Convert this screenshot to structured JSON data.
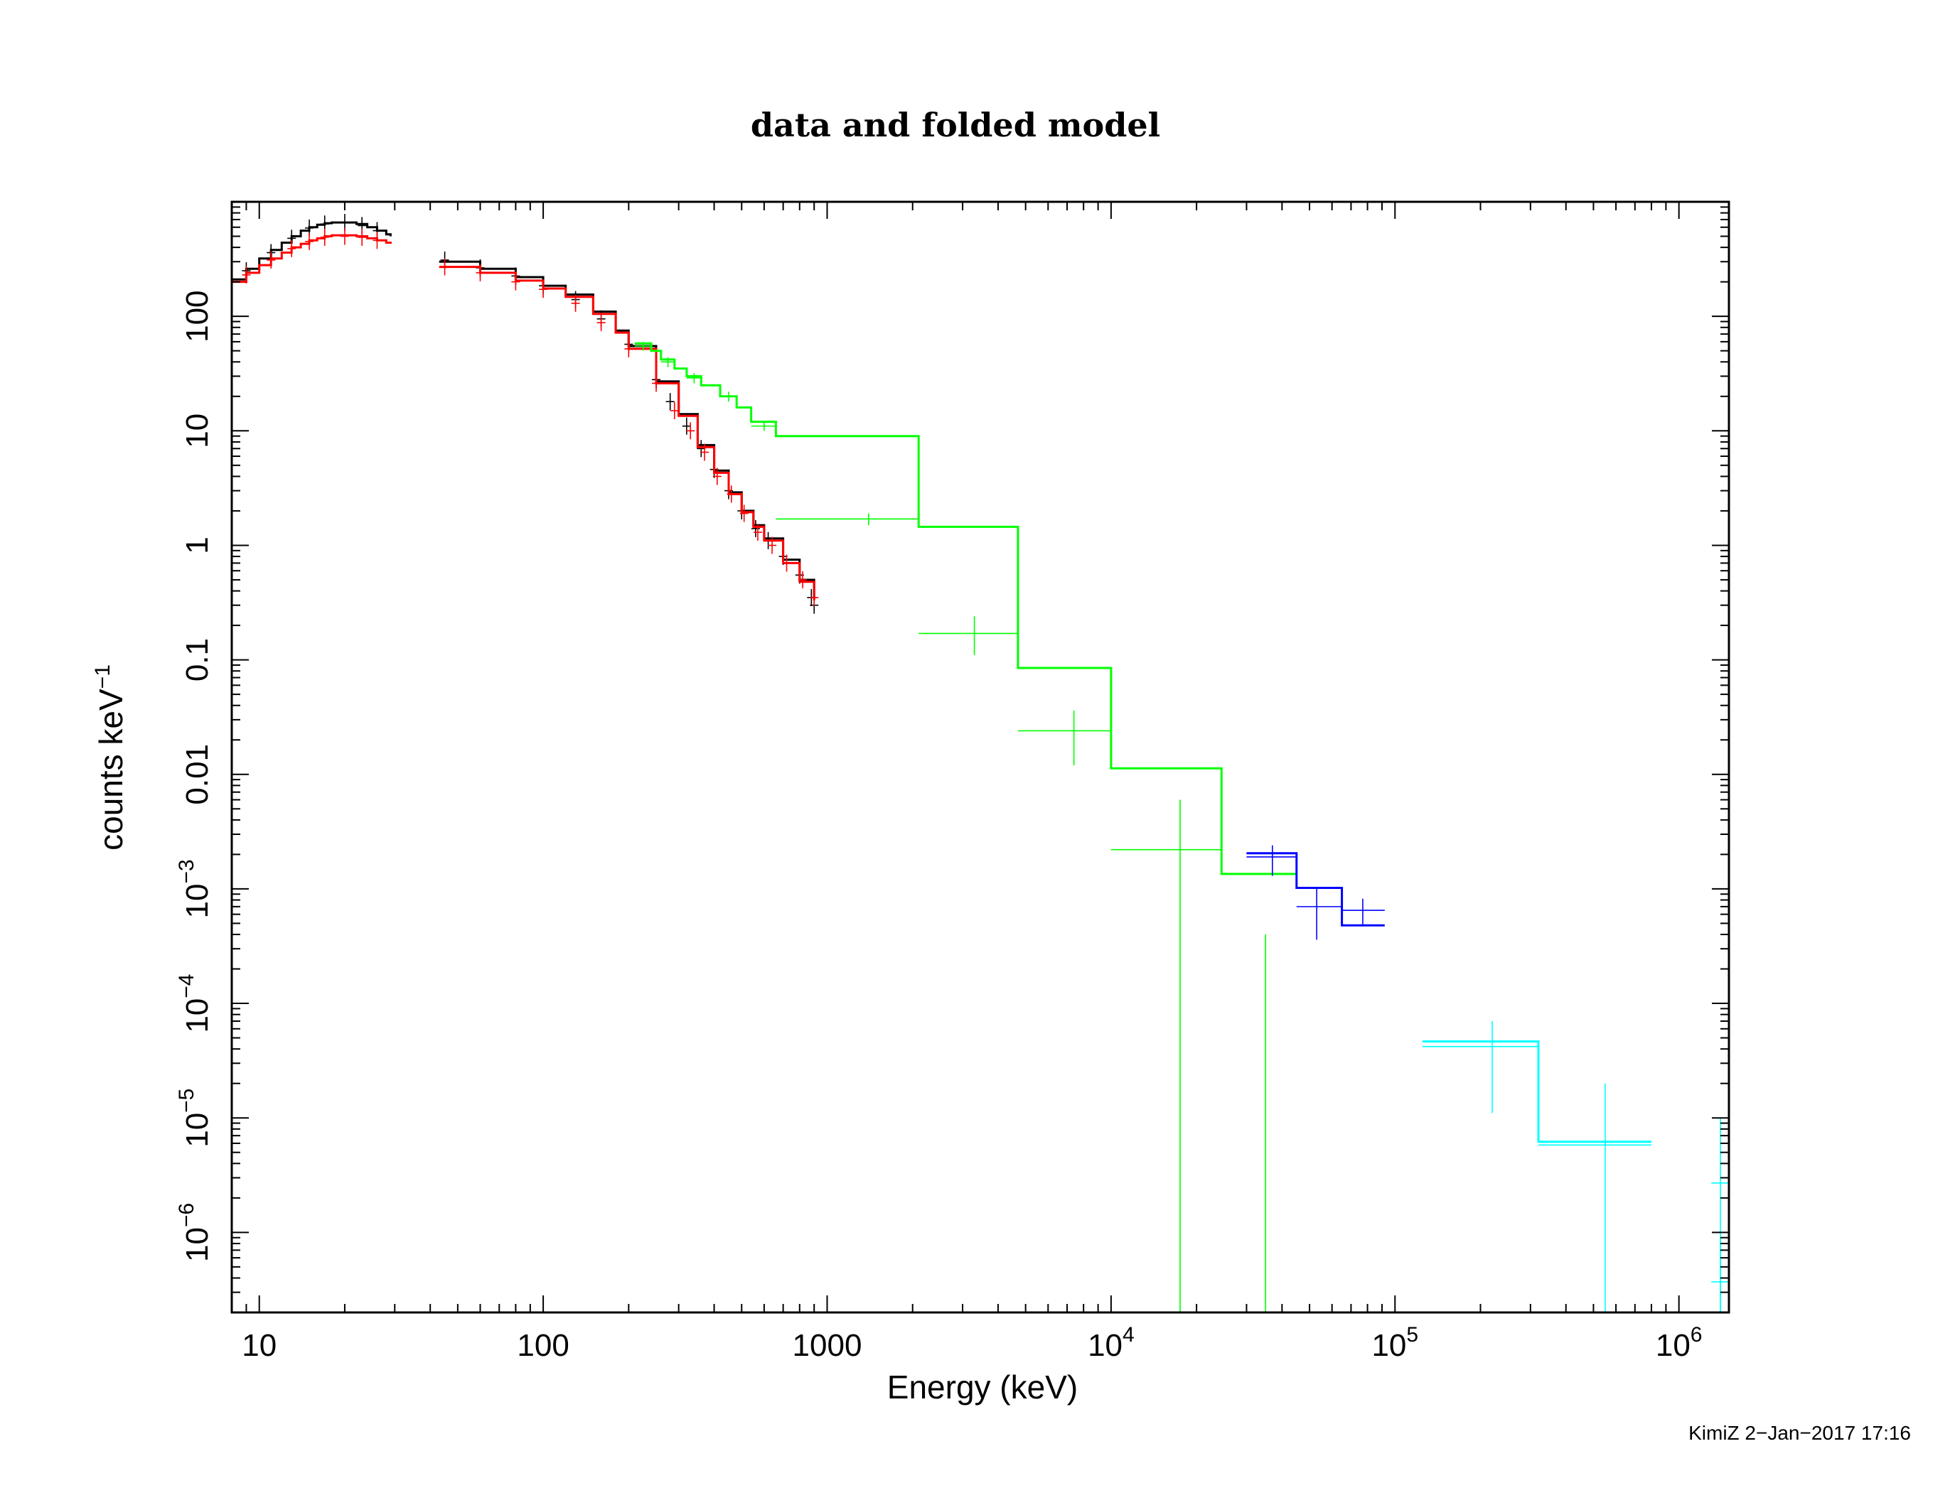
{
  "chart_data": {
    "type": "line",
    "title": "data and folded model",
    "xlabel": "Energy (keV)",
    "ylabel": "counts keV",
    "ylabel_sup": "−1",
    "x_scale": "log",
    "y_scale": "log",
    "xlim": [
      8,
      1500000
    ],
    "ylim": [
      2e-07,
      1000
    ],
    "grid": false,
    "legend": "none",
    "x_ticks": [
      {
        "value": 10,
        "base": "10",
        "sup": ""
      },
      {
        "value": 100,
        "base": "100",
        "sup": ""
      },
      {
        "value": 1000,
        "base": "1000",
        "sup": ""
      },
      {
        "value": 10000,
        "base": "10",
        "sup": "4"
      },
      {
        "value": 100000,
        "base": "10",
        "sup": "5"
      },
      {
        "value": 1000000,
        "base": "10",
        "sup": "6"
      }
    ],
    "y_ticks": [
      {
        "value": 100,
        "base": "100",
        "sup": ""
      },
      {
        "value": 10,
        "base": "10",
        "sup": ""
      },
      {
        "value": 1,
        "base": "1",
        "sup": ""
      },
      {
        "value": 0.1,
        "base": "0.1",
        "sup": ""
      },
      {
        "value": 0.01,
        "base": "0.01",
        "sup": ""
      },
      {
        "value": 0.001,
        "base": "10",
        "sup": "−3"
      },
      {
        "value": 0.0001,
        "base": "10",
        "sup": "−4"
      },
      {
        "value": 1e-05,
        "base": "10",
        "sup": "−5"
      },
      {
        "value": 1e-06,
        "base": "10",
        "sup": "−6"
      }
    ],
    "series": [
      {
        "color": "#000000",
        "model_segments": [
          {
            "x": [
              8,
              9,
              10,
              11,
              12,
              13,
              14,
              15,
              16,
              17,
              18,
              20,
              22,
              24,
              26,
              28,
              29
            ],
            "y": [
              210,
              260,
              320,
              380,
              440,
              500,
              560,
              600,
              630,
              650,
              660,
              660,
              640,
              600,
              560,
              520,
              500
            ]
          },
          {
            "x": [
              43,
              60,
              80,
              100,
              120,
              150,
              180,
              200,
              250,
              300,
              350,
              400,
              450,
              500,
              550,
              600,
              700,
              800,
              900
            ],
            "y": [
              300,
              260,
              220,
              185,
              155,
              110,
              75,
              55,
              27,
              14,
              7.5,
              4.5,
              2.9,
              2.0,
              1.5,
              1.15,
              0.75,
              0.5,
              0.35
            ]
          }
        ],
        "points": [
          {
            "x": 9,
            "y": 250
          },
          {
            "x": 11,
            "y": 360
          },
          {
            "x": 13,
            "y": 480
          },
          {
            "x": 15,
            "y": 590
          },
          {
            "x": 17,
            "y": 640
          },
          {
            "x": 20,
            "y": 660
          },
          {
            "x": 23,
            "y": 620
          },
          {
            "x": 26,
            "y": 560
          },
          {
            "x": 45,
            "y": 310
          },
          {
            "x": 60,
            "y": 265
          },
          {
            "x": 80,
            "y": 225
          },
          {
            "x": 100,
            "y": 185
          },
          {
            "x": 130,
            "y": 140
          },
          {
            "x": 160,
            "y": 95
          },
          {
            "x": 200,
            "y": 57
          },
          {
            "x": 250,
            "y": 28
          },
          {
            "x": 280,
            "y": 18
          },
          {
            "x": 320,
            "y": 11
          },
          {
            "x": 360,
            "y": 7
          },
          {
            "x": 400,
            "y": 4.6
          },
          {
            "x": 450,
            "y": 3.0
          },
          {
            "x": 500,
            "y": 2.0
          },
          {
            "x": 560,
            "y": 1.4
          },
          {
            "x": 620,
            "y": 1.1
          },
          {
            "x": 700,
            "y": 0.8
          },
          {
            "x": 800,
            "y": 0.55
          },
          {
            "x": 880,
            "y": 0.35
          },
          {
            "x": 900,
            "y": 0.3
          }
        ]
      },
      {
        "color": "#ff0000",
        "model_segments": [
          {
            "x": [
              8,
              9,
              10,
              11,
              12,
              13,
              14,
              15,
              16,
              17,
              18,
              20,
              22,
              24,
              26,
              28,
              29
            ],
            "y": [
              200,
              240,
              280,
              320,
              360,
              400,
              430,
              460,
              480,
              500,
              510,
              510,
              500,
              480,
              460,
              440,
              430
            ]
          },
          {
            "x": [
              43,
              60,
              80,
              100,
              120,
              150,
              180,
              200,
              250,
              300,
              350,
              400,
              450,
              500,
              550,
              600,
              700,
              800,
              900
            ],
            "y": [
              270,
              240,
              205,
              175,
              148,
              105,
              72,
              52,
              26,
              13.5,
              7.2,
              4.3,
              2.8,
              1.95,
              1.45,
              1.1,
              0.7,
              0.48,
              0.33
            ]
          }
        ],
        "points": [
          {
            "x": 9,
            "y": 230
          },
          {
            "x": 11,
            "y": 310
          },
          {
            "x": 13,
            "y": 390
          },
          {
            "x": 15,
            "y": 450
          },
          {
            "x": 17,
            "y": 490
          },
          {
            "x": 20,
            "y": 500
          },
          {
            "x": 23,
            "y": 490
          },
          {
            "x": 26,
            "y": 460
          },
          {
            "x": 45,
            "y": 270
          },
          {
            "x": 60,
            "y": 240
          },
          {
            "x": 80,
            "y": 200
          },
          {
            "x": 100,
            "y": 172
          },
          {
            "x": 130,
            "y": 130
          },
          {
            "x": 160,
            "y": 88
          },
          {
            "x": 200,
            "y": 52
          },
          {
            "x": 250,
            "y": 26
          },
          {
            "x": 290,
            "y": 15
          },
          {
            "x": 330,
            "y": 10
          },
          {
            "x": 370,
            "y": 6.5
          },
          {
            "x": 410,
            "y": 4.0
          },
          {
            "x": 460,
            "y": 2.8
          },
          {
            "x": 510,
            "y": 1.9
          },
          {
            "x": 570,
            "y": 1.3
          },
          {
            "x": 640,
            "y": 1.0
          },
          {
            "x": 720,
            "y": 0.7
          },
          {
            "x": 820,
            "y": 0.5
          },
          {
            "x": 900,
            "y": 0.35
          }
        ]
      },
      {
        "color": "#00ff00",
        "model_segments": [
          {
            "x": [
              210,
              240,
              260,
              290,
              320,
              360,
              420,
              480,
              540,
              660,
              2100,
              4700,
              10000,
              24500,
              45000
            ],
            "y": [
              58,
              50,
              42,
              35,
              30,
              25,
              20,
              16,
              12,
              9,
              1.45,
              0.085,
              0.0113,
              0.00135,
              0.00017
            ],
            "step": true
          }
        ],
        "points": [
          {
            "x": 225,
            "y": 55,
            "xerr": [
              210,
              240
            ],
            "yerr": [
              50,
              60
            ]
          },
          {
            "x": 275,
            "y": 40,
            "xerr": [
              260,
              290
            ],
            "yerr": [
              36,
              44
            ]
          },
          {
            "x": 340,
            "y": 29,
            "xerr": [
              320,
              360
            ],
            "yerr": [
              26,
              32
            ]
          },
          {
            "x": 450,
            "y": 20,
            "xerr": [
              420,
              480
            ],
            "yerr": [
              18,
              22
            ]
          },
          {
            "x": 600,
            "y": 11,
            "xerr": [
              540,
              660
            ],
            "yerr": [
              10,
              12
            ]
          },
          {
            "x": 1400,
            "y": 1.7,
            "xerr": [
              660,
              2100
            ],
            "yerr": [
              1.5,
              1.9
            ]
          },
          {
            "x": 3300,
            "y": 0.17,
            "xerr": [
              2100,
              4700
            ],
            "yerr": [
              0.11,
              0.24
            ]
          },
          {
            "x": 7400,
            "y": 0.024,
            "xerr": [
              4700,
              10000
            ],
            "yerr": [
              0.012,
              0.036
            ]
          },
          {
            "x": 17500,
            "y": 0.0022,
            "xerr": [
              10000,
              24500
            ],
            "yerr": [
              2e-07,
              0.006
            ]
          },
          {
            "x": 35000,
            "y": 0.00017,
            "xerr": [
              35000,
              35000
            ],
            "yerr": [
              2e-07,
              0.0004
            ]
          }
        ]
      },
      {
        "color": "#0000ff",
        "model_segments": [
          {
            "x": [
              30000,
              45000,
              65000,
              92000
            ],
            "y": [
              0.00205,
              0.00102,
              0.00048,
              0.00048
            ],
            "step": true
          }
        ],
        "points": [
          {
            "x": 37000,
            "y": 0.0019,
            "xerr": [
              30000,
              45000
            ],
            "yerr": [
              0.0013,
              0.0024
            ]
          },
          {
            "x": 53000,
            "y": 0.0007,
            "xerr": [
              45000,
              65000
            ],
            "yerr": [
              0.00036,
              0.001
            ]
          },
          {
            "x": 77000,
            "y": 0.00065,
            "xerr": [
              65000,
              92000
            ],
            "yerr": [
              0.00049,
              0.00082
            ]
          }
        ]
      },
      {
        "color": "#00ffff",
        "model_segments": [
          {
            "x": [
              125000,
              320000,
              800000
            ],
            "y": [
              4.65e-05,
              6.2e-06,
              6.2e-06
            ],
            "step": true
          }
        ],
        "points": [
          {
            "x": 220000,
            "y": 4.2e-05,
            "xerr": [
              125000,
              320000
            ],
            "yerr": [
              1.1e-05,
              7e-05
            ]
          },
          {
            "x": 550000,
            "y": 5.8e-06,
            "xerr": [
              320000,
              800000
            ],
            "yerr": [
              2e-07,
              2e-05
            ]
          },
          {
            "x": 1400000,
            "y": 2.7e-06,
            "xerr": [
              1300000,
              1500000
            ],
            "yerr": [
              2e-07,
              1e-05
            ]
          },
          {
            "x": 1400000,
            "y": 3.7e-07,
            "xerr": [
              1300000,
              1500000
            ],
            "yerr": [
              2e-07,
              9e-07
            ]
          }
        ]
      }
    ]
  },
  "footer": {
    "stamp": "KimiZ  2−Jan−2017 17:16"
  }
}
